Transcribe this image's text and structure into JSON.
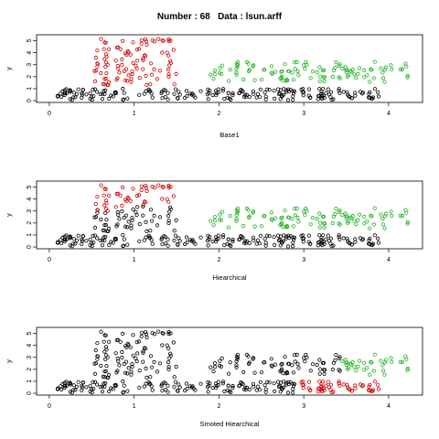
{
  "header": {
    "number_label": "Number : 68",
    "data_label": "Data : lsun.arff"
  },
  "colors": {
    "black": "#000000",
    "red": "#cc0000",
    "green": "#1eb01e"
  },
  "chart_data": [
    {
      "type": "scatter",
      "xlabel": "Base1",
      "ylabel": "y",
      "xlim": [
        -0.15,
        4.4
      ],
      "ylim": [
        -0.15,
        5.5
      ],
      "x_ticks": [
        0,
        1,
        2,
        3,
        4
      ],
      "y_ticks": [
        0,
        1,
        2,
        3,
        4,
        5
      ],
      "grid": false,
      "clusters": {
        "bottom_band": "black",
        "left_column": "red",
        "right_band": "green"
      }
    },
    {
      "type": "scatter",
      "xlabel": "Hiearchical",
      "ylabel": "y",
      "xlim": [
        -0.15,
        4.4
      ],
      "ylim": [
        -0.15,
        5.5
      ],
      "x_ticks": [
        0,
        1,
        2,
        3,
        4
      ],
      "y_ticks": [
        0,
        1,
        2,
        3,
        4,
        5
      ],
      "grid": false,
      "clusters": {
        "bottom_band": "black",
        "left_column_lower": "black",
        "left_column_upper": "red",
        "right_band": "green"
      }
    },
    {
      "type": "scatter",
      "xlabel": "Smoted Hiearchical",
      "ylabel": "y",
      "xlim": [
        -0.15,
        4.4
      ],
      "ylim": [
        -0.15,
        5.5
      ],
      "x_ticks": [
        0,
        1,
        2,
        3,
        4
      ],
      "y_ticks": [
        0,
        1,
        2,
        3,
        4,
        5
      ],
      "grid": false,
      "clusters": {
        "bottom_band_left": "black",
        "bottom_band_right": "red",
        "left_column": "black",
        "right_band_left": "black",
        "right_band_right": "green"
      }
    }
  ]
}
